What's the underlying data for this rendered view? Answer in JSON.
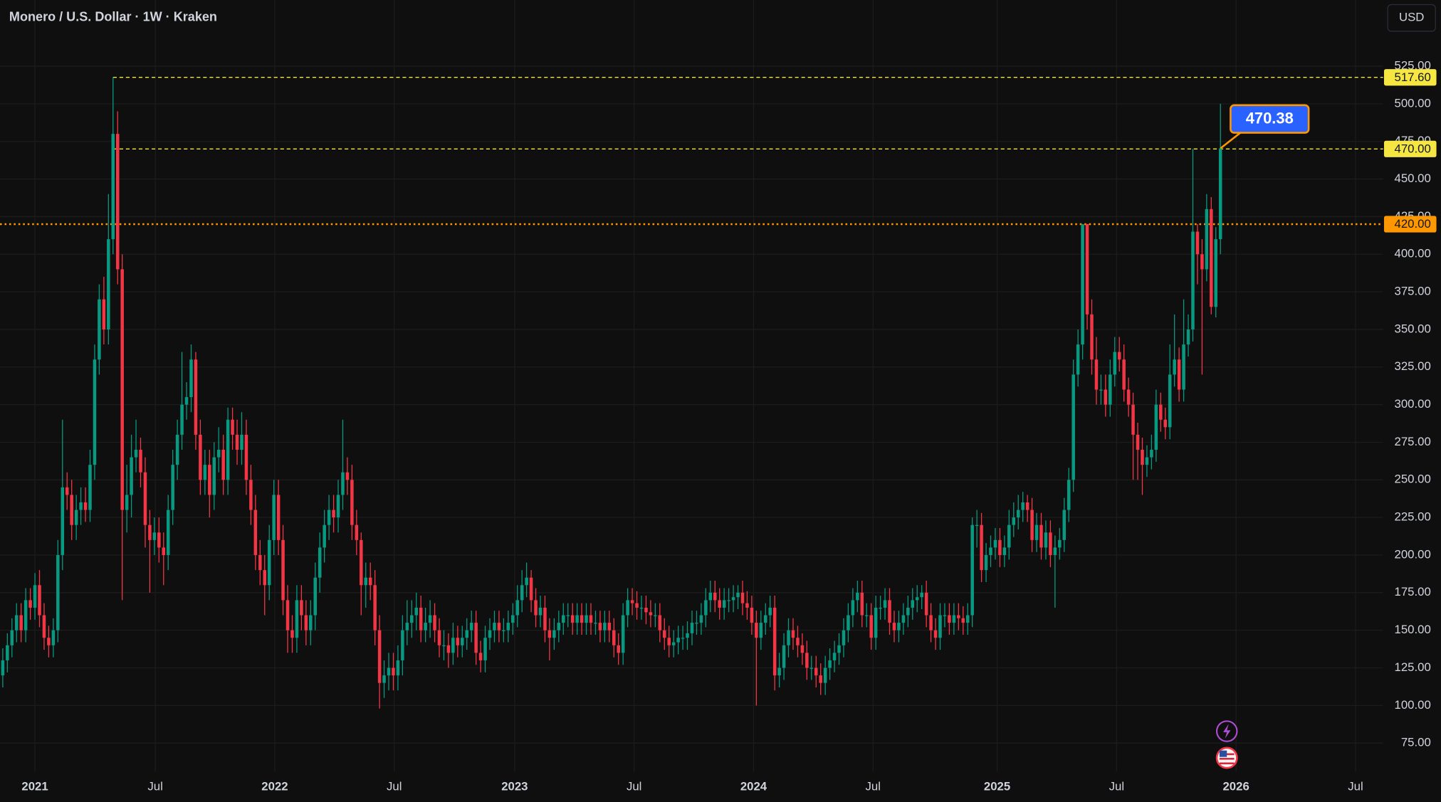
{
  "chart_data": {
    "type": "candlestick",
    "title": "Monero / U.S. Dollar · 1W · Kraken",
    "currency_button": "USD",
    "up_color": "#089981",
    "down_color": "#f23645",
    "grid": true,
    "xlim": [
      -0.6,
      300.4
    ],
    "xticks": [
      {
        "value": 7,
        "label": "2021"
      },
      {
        "value": 33.2,
        "label": "Jul"
      },
      {
        "value": 59.2,
        "label": "2022"
      },
      {
        "value": 85.2,
        "label": "Jul"
      },
      {
        "value": 111.4,
        "label": "2023"
      },
      {
        "value": 137.4,
        "label": "Jul"
      },
      {
        "value": 163.4,
        "label": "2024"
      },
      {
        "value": 189.4,
        "label": "Jul"
      },
      {
        "value": 216.4,
        "label": "2025"
      },
      {
        "value": 242.4,
        "label": "Jul"
      },
      {
        "value": 268.4,
        "label": "2026"
      },
      {
        "value": 294.4,
        "label": "Jul"
      }
    ],
    "ylim": [
      56,
      569
    ],
    "yticks": [
      {
        "value": 75,
        "label": "75.00"
      },
      {
        "value": 100,
        "label": "100.00"
      },
      {
        "value": 125,
        "label": "125.00"
      },
      {
        "value": 150,
        "label": "150.00"
      },
      {
        "value": 175,
        "label": "175.00"
      },
      {
        "value": 200,
        "label": "200.00"
      },
      {
        "value": 225,
        "label": "225.00"
      },
      {
        "value": 250,
        "label": "250.00"
      },
      {
        "value": 275,
        "label": "275.00"
      },
      {
        "value": 300,
        "label": "300.00"
      },
      {
        "value": 325,
        "label": "325.00"
      },
      {
        "value": 350,
        "label": "350.00"
      },
      {
        "value": 375,
        "label": "375.00"
      },
      {
        "value": 400,
        "label": "400.00"
      },
      {
        "value": 425,
        "label": "425.00"
      },
      {
        "value": 450,
        "label": "450.00"
      },
      {
        "value": 475,
        "label": "475.00"
      },
      {
        "value": 500,
        "label": "500.00"
      },
      {
        "value": 525,
        "label": "525.00"
      }
    ],
    "levels": [
      {
        "value": 517.6,
        "label": "517.60",
        "color": "#f5e642",
        "style": "dashed"
      },
      {
        "value": 470,
        "label": "470.00",
        "color": "#f5e642",
        "style": "dashed"
      },
      {
        "value": 420,
        "label": "420.00",
        "color": "#ff9800",
        "style": "dotted"
      }
    ],
    "callout": {
      "value": 470.38,
      "label": "470.38",
      "color": "#2962ff",
      "border": "#ff9800"
    },
    "open": [
      120,
      130,
      140,
      150,
      160,
      150,
      170,
      165,
      180,
      160,
      145,
      140,
      150,
      200,
      245,
      240,
      220,
      230,
      235,
      230,
      260,
      330,
      370,
      350,
      410,
      480,
      390,
      230,
      240,
      265,
      270,
      255,
      220,
      210,
      215,
      205,
      200,
      230,
      260,
      280,
      300,
      305,
      330,
      280,
      250,
      260,
      240,
      265,
      270,
      250,
      290,
      280,
      270,
      280,
      250,
      230,
      200,
      190,
      180,
      210,
      240,
      210,
      170,
      150,
      145,
      170,
      160,
      150,
      160,
      185,
      205,
      220,
      230,
      225,
      240,
      255,
      250,
      220,
      210,
      180,
      185,
      180,
      150,
      115,
      120,
      125,
      120,
      130,
      150,
      155,
      160,
      165,
      150,
      155,
      160,
      150,
      140,
      140,
      135,
      145,
      140,
      145,
      150,
      155,
      135,
      130,
      145,
      150,
      155,
      150,
      150,
      155,
      160,
      170,
      180,
      185,
      170,
      160,
      165,
      150,
      145,
      150,
      155,
      160,
      160,
      155,
      160,
      155,
      160,
      155,
      155,
      150,
      155,
      150,
      140,
      135,
      160,
      170,
      168,
      165,
      165,
      162,
      160,
      160,
      150,
      145,
      140,
      142,
      145,
      145,
      148,
      155,
      155,
      160,
      170,
      175,
      170,
      165,
      170,
      170,
      172,
      175,
      168,
      165,
      155,
      145,
      155,
      160,
      165,
      120,
      125,
      140,
      150,
      145,
      140,
      135,
      125,
      125,
      120,
      115,
      125,
      130,
      135,
      140,
      150,
      160,
      170,
      175,
      160,
      160,
      145,
      165,
      165,
      170,
      155,
      150,
      155,
      160,
      165,
      170,
      172,
      175,
      160,
      150,
      145,
      160,
      160,
      155,
      160,
      158,
      155,
      160,
      220,
      220,
      190,
      200,
      205,
      210,
      200,
      205,
      220,
      225,
      230,
      235,
      230,
      210,
      220,
      205,
      215,
      200,
      205,
      210,
      230,
      250,
      320,
      340,
      420,
      360,
      330,
      310,
      310,
      300,
      320,
      335,
      330,
      310,
      300,
      280,
      270,
      260,
      265,
      270,
      300,
      290,
      285,
      320,
      330,
      310,
      340,
      350,
      415,
      400,
      390,
      430,
      365,
      410
    ],
    "high": [
      138,
      148,
      158,
      168,
      168,
      178,
      178,
      188,
      190,
      168,
      153,
      158,
      210,
      290,
      255,
      250,
      240,
      245,
      245,
      270,
      340,
      380,
      385,
      440,
      517.6,
      495,
      400,
      260,
      280,
      290,
      278,
      265,
      230,
      225,
      225,
      215,
      240,
      270,
      290,
      335,
      315,
      340,
      335,
      290,
      270,
      270,
      275,
      285,
      280,
      298,
      298,
      290,
      295,
      290,
      260,
      240,
      210,
      200,
      220,
      250,
      250,
      220,
      180,
      160,
      180,
      180,
      170,
      170,
      195,
      215,
      230,
      240,
      240,
      250,
      290,
      265,
      260,
      230,
      215,
      195,
      195,
      190,
      160,
      130,
      135,
      135,
      140,
      160,
      170,
      170,
      175,
      173,
      165,
      170,
      168,
      158,
      150,
      148,
      155,
      153,
      153,
      158,
      163,
      163,
      143,
      153,
      158,
      163,
      163,
      158,
      163,
      168,
      180,
      190,
      195,
      190,
      178,
      173,
      173,
      158,
      158,
      163,
      168,
      168,
      168,
      168,
      168,
      168,
      168,
      163,
      163,
      163,
      163,
      158,
      148,
      168,
      178,
      178,
      176,
      173,
      173,
      170,
      168,
      168,
      158,
      153,
      150,
      153,
      153,
      156,
      163,
      163,
      168,
      178,
      183,
      183,
      178,
      178,
      178,
      180,
      180,
      183,
      176,
      173,
      163,
      163,
      168,
      173,
      173,
      135,
      148,
      158,
      158,
      153,
      148,
      143,
      133,
      133,
      128,
      133,
      138,
      143,
      148,
      158,
      168,
      178,
      183,
      183,
      168,
      168,
      173,
      173,
      178,
      178,
      163,
      163,
      168,
      173,
      178,
      180,
      180,
      183,
      168,
      158,
      168,
      168,
      168,
      168,
      168,
      166,
      168,
      225,
      230,
      228,
      208,
      213,
      218,
      218,
      213,
      230,
      235,
      240,
      242,
      240,
      238,
      228,
      228,
      223,
      223,
      213,
      218,
      238,
      258,
      330,
      350,
      420,
      420,
      370,
      345,
      320,
      320,
      330,
      345,
      345,
      340,
      318,
      308,
      288,
      278,
      273,
      280,
      310,
      308,
      298,
      340,
      360,
      338,
      370,
      360,
      470,
      420,
      410,
      440,
      438,
      418,
      500
    ],
    "low": [
      112,
      122,
      132,
      142,
      142,
      142,
      157,
      157,
      152,
      137,
      132,
      132,
      142,
      190,
      230,
      210,
      210,
      220,
      222,
      222,
      250,
      320,
      340,
      340,
      400,
      380,
      170,
      215,
      225,
      255,
      245,
      205,
      175,
      200,
      195,
      180,
      190,
      220,
      250,
      270,
      290,
      295,
      270,
      240,
      240,
      225,
      230,
      255,
      240,
      240,
      270,
      260,
      260,
      240,
      220,
      190,
      180,
      160,
      170,
      200,
      200,
      160,
      135,
      135,
      135,
      150,
      140,
      140,
      150,
      175,
      195,
      210,
      215,
      215,
      230,
      240,
      210,
      200,
      160,
      165,
      170,
      140,
      98,
      105,
      110,
      110,
      110,
      120,
      140,
      145,
      150,
      142,
      142,
      145,
      142,
      132,
      130,
      125,
      127,
      132,
      132,
      137,
      142,
      127,
      122,
      122,
      137,
      142,
      142,
      142,
      142,
      147,
      152,
      162,
      172,
      162,
      152,
      152,
      142,
      130,
      137,
      142,
      147,
      152,
      147,
      147,
      147,
      147,
      147,
      147,
      142,
      142,
      142,
      132,
      127,
      127,
      152,
      160,
      157,
      157,
      154,
      152,
      152,
      142,
      137,
      132,
      132,
      134,
      137,
      137,
      140,
      147,
      147,
      152,
      162,
      162,
      157,
      157,
      162,
      162,
      164,
      160,
      157,
      147,
      100,
      137,
      147,
      152,
      110,
      112,
      117,
      132,
      137,
      132,
      127,
      117,
      117,
      112,
      107,
      107,
      117,
      122,
      127,
      132,
      142,
      152,
      162,
      152,
      152,
      137,
      137,
      157,
      157,
      147,
      142,
      142,
      147,
      152,
      157,
      162,
      164,
      152,
      142,
      137,
      137,
      152,
      147,
      147,
      150,
      147,
      147,
      152,
      205,
      182,
      182,
      192,
      197,
      192,
      192,
      197,
      212,
      217,
      222,
      222,
      202,
      202,
      197,
      197,
      192,
      165,
      197,
      202,
      222,
      242,
      312,
      330,
      350,
      320,
      300,
      300,
      292,
      292,
      312,
      322,
      302,
      292,
      250,
      250,
      240,
      252,
      257,
      262,
      282,
      277,
      277,
      312,
      302,
      302,
      332,
      342,
      380,
      320,
      382,
      360,
      358,
      400
    ],
    "close": [
      130,
      140,
      150,
      160,
      150,
      170,
      165,
      180,
      160,
      145,
      140,
      150,
      200,
      245,
      240,
      220,
      230,
      235,
      230,
      260,
      330,
      370,
      350,
      410,
      480,
      390,
      230,
      240,
      265,
      270,
      255,
      220,
      210,
      215,
      205,
      200,
      230,
      260,
      280,
      300,
      305,
      330,
      280,
      250,
      260,
      240,
      265,
      270,
      250,
      290,
      280,
      270,
      280,
      250,
      230,
      200,
      190,
      180,
      210,
      240,
      210,
      170,
      150,
      145,
      170,
      160,
      150,
      160,
      185,
      205,
      220,
      230,
      225,
      240,
      255,
      250,
      220,
      210,
      180,
      185,
      180,
      150,
      115,
      120,
      125,
      120,
      130,
      150,
      155,
      160,
      165,
      150,
      155,
      160,
      150,
      140,
      140,
      135,
      145,
      140,
      145,
      150,
      155,
      135,
      130,
      145,
      150,
      155,
      150,
      150,
      155,
      160,
      170,
      180,
      185,
      170,
      160,
      165,
      150,
      145,
      150,
      155,
      160,
      160,
      155,
      160,
      155,
      160,
      155,
      155,
      150,
      155,
      150,
      140,
      135,
      160,
      170,
      168,
      165,
      165,
      162,
      160,
      160,
      150,
      145,
      140,
      142,
      145,
      145,
      148,
      155,
      155,
      160,
      170,
      175,
      170,
      165,
      170,
      170,
      172,
      175,
      168,
      165,
      155,
      145,
      155,
      160,
      165,
      120,
      125,
      140,
      150,
      145,
      140,
      135,
      125,
      125,
      120,
      115,
      125,
      130,
      135,
      140,
      150,
      160,
      170,
      175,
      160,
      160,
      145,
      165,
      165,
      170,
      155,
      150,
      155,
      160,
      165,
      170,
      172,
      175,
      160,
      150,
      145,
      160,
      160,
      155,
      160,
      158,
      155,
      160,
      220,
      220,
      190,
      200,
      205,
      210,
      200,
      205,
      220,
      225,
      230,
      235,
      230,
      210,
      220,
      205,
      215,
      200,
      205,
      210,
      230,
      250,
      320,
      340,
      420,
      360,
      330,
      310,
      310,
      300,
      320,
      335,
      330,
      310,
      300,
      280,
      270,
      260,
      265,
      270,
      300,
      290,
      285,
      320,
      330,
      310,
      340,
      350,
      415,
      400,
      390,
      430,
      365,
      410,
      470.38
    ]
  }
}
